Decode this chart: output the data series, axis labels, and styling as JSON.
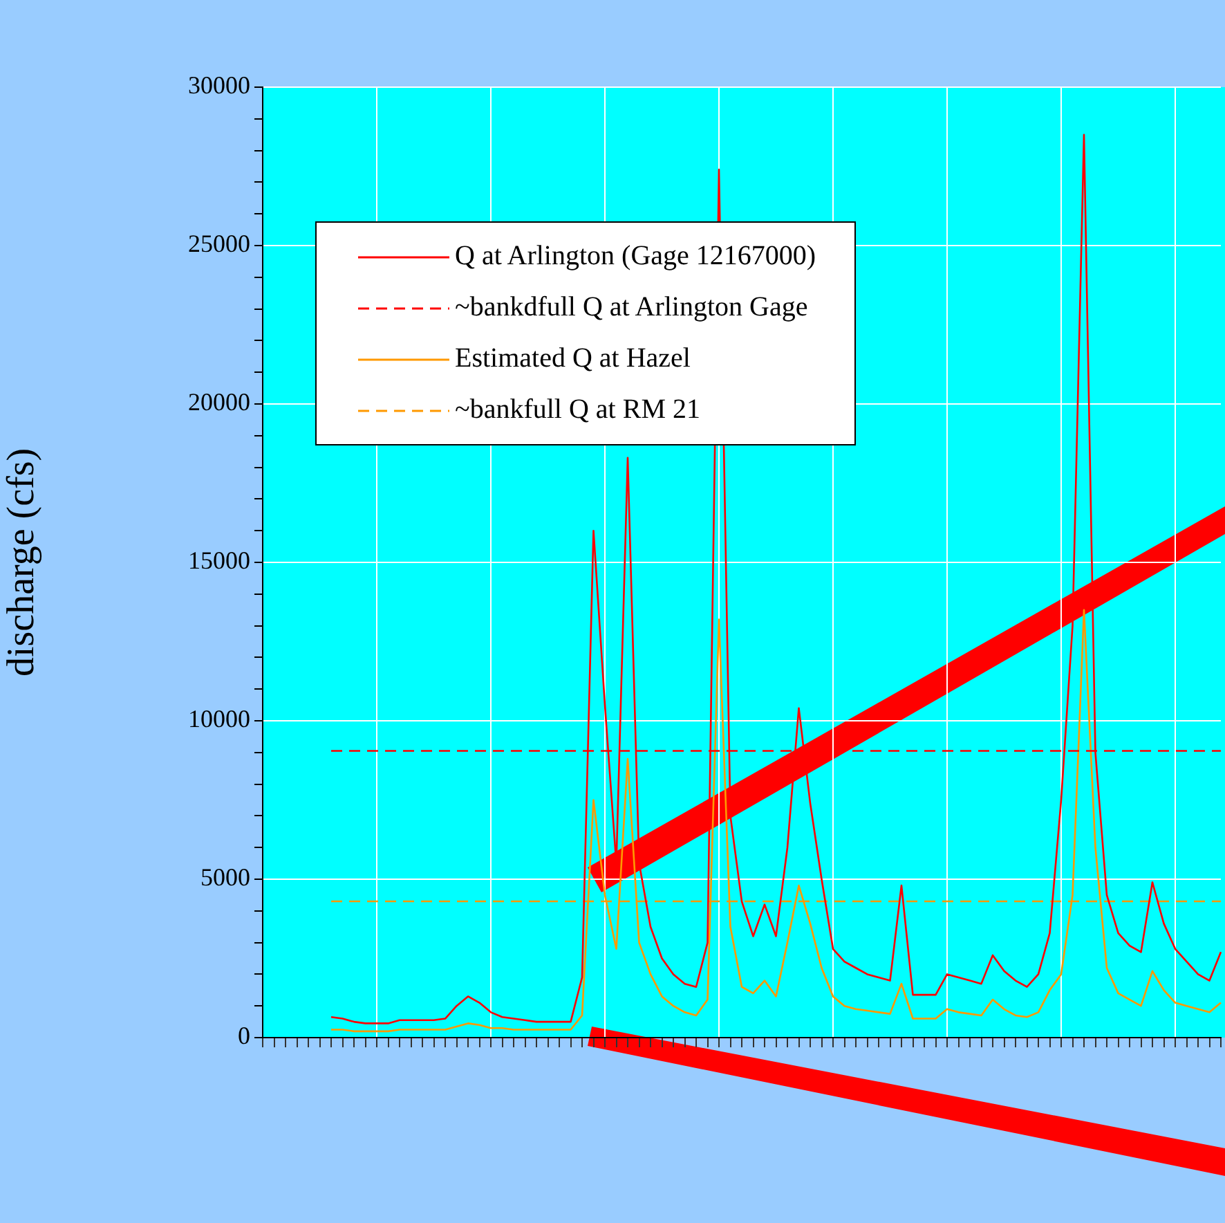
{
  "chart_data": {
    "type": "line",
    "ylabel": "discharge (cfs)",
    "categories": [
      null,
      null,
      null,
      null,
      null,
      null,
      null,
      null,
      null,
      null,
      null,
      null,
      null,
      null,
      null,
      null,
      null,
      null,
      null,
      null,
      null,
      null,
      null,
      null,
      null,
      null,
      null,
      null,
      null,
      null,
      null,
      null,
      null,
      null,
      null,
      null,
      null,
      null,
      null,
      null,
      null,
      null,
      null,
      null,
      null,
      null,
      null,
      null,
      null,
      null,
      null,
      null,
      null,
      null,
      null,
      null,
      null,
      null,
      null,
      null,
      null,
      null,
      null,
      null,
      null,
      null,
      null,
      null,
      null,
      null,
      null,
      null,
      null,
      null,
      null,
      null,
      null,
      null,
      null,
      null,
      null,
      null,
      null,
      null,
      null
    ],
    "series": [
      {
        "name": "Q at Arlington (Gage 12167000)",
        "color": "#ff0000",
        "line_style": "solid",
        "values": [
          null,
          null,
          null,
          null,
          null,
          null,
          650,
          600,
          500,
          450,
          450,
          450,
          550,
          550,
          550,
          550,
          600,
          1000,
          1300,
          1100,
          800,
          650,
          600,
          550,
          500,
          500,
          500,
          500,
          1900,
          16000,
          10500,
          5500,
          18300,
          5500,
          3500,
          2500,
          2000,
          1700,
          1600,
          3000,
          27400,
          7000,
          4300,
          3200,
          4200,
          3200,
          6000,
          10400,
          7400,
          5000,
          2800,
          2400,
          2200,
          2000,
          1900,
          1800,
          4800,
          1350,
          1350,
          1350,
          2000,
          1900,
          1800,
          1700,
          2600,
          2100,
          1800,
          1600,
          2000,
          3300,
          7500,
          13000,
          28500,
          9000,
          4500,
          3300,
          2900,
          2700,
          4900,
          3600,
          2800,
          2400,
          2000,
          1800,
          2700
        ]
      },
      {
        "name": "~bankdfull Q at Arlington Gage",
        "color": "#ff0000",
        "line_style": "dashed",
        "values": [
          null,
          null,
          null,
          null,
          null,
          null,
          9050,
          9050,
          9050,
          9050,
          9050,
          9050,
          9050,
          9050,
          9050,
          9050,
          9050,
          9050,
          9050,
          9050,
          9050,
          9050,
          9050,
          9050,
          9050,
          9050,
          9050,
          9050,
          9050,
          9050,
          9050,
          9050,
          9050,
          9050,
          9050,
          9050,
          9050,
          9050,
          9050,
          9050,
          9050,
          9050,
          9050,
          9050,
          9050,
          9050,
          9050,
          9050,
          9050,
          9050,
          9050,
          9050,
          9050,
          9050,
          9050,
          9050,
          9050,
          9050,
          9050,
          9050,
          9050,
          9050,
          9050,
          9050,
          9050,
          9050,
          9050,
          9050,
          9050,
          9050,
          9050,
          9050,
          9050,
          9050,
          9050,
          9050,
          9050,
          9050,
          9050,
          9050,
          9050,
          9050,
          9050,
          9050,
          9050
        ]
      },
      {
        "name": "Estimated Q at Hazel",
        "color": "#ff9900",
        "line_style": "solid",
        "values": [
          null,
          null,
          null,
          null,
          null,
          null,
          250,
          250,
          200,
          200,
          200,
          200,
          250,
          250,
          250,
          250,
          250,
          350,
          450,
          400,
          300,
          300,
          250,
          250,
          250,
          250,
          250,
          250,
          700,
          7500,
          4500,
          2800,
          8800,
          3000,
          2000,
          1300,
          1000,
          800,
          700,
          1200,
          13200,
          3500,
          1600,
          1400,
          1800,
          1300,
          3000,
          4800,
          3600,
          2200,
          1300,
          1000,
          900,
          850,
          800,
          750,
          1700,
          600,
          600,
          600,
          900,
          800,
          750,
          700,
          1200,
          900,
          700,
          650,
          800,
          1500,
          2000,
          4500,
          13500,
          6000,
          2200,
          1400,
          1200,
          1000,
          2100,
          1500,
          1100,
          1000,
          900,
          800,
          1100
        ]
      },
      {
        "name": "~bankfull Q at RM 21",
        "color": "#ff9900",
        "line_style": "dashed",
        "values": [
          null,
          null,
          null,
          null,
          null,
          null,
          4300,
          4300,
          4300,
          4300,
          4300,
          4300,
          4300,
          4300,
          4300,
          4300,
          4300,
          4300,
          4300,
          4300,
          4300,
          4300,
          4300,
          4300,
          4300,
          4300,
          4300,
          4300,
          4300,
          4300,
          4300,
          4300,
          4300,
          4300,
          4300,
          4300,
          4300,
          4300,
          4300,
          4300,
          4300,
          4300,
          4300,
          4300,
          4300,
          4300,
          4300,
          4300,
          4300,
          4300,
          4300,
          4300,
          4300,
          4300,
          4300,
          4300,
          4300,
          4300,
          4300,
          4300,
          4300,
          4300,
          4300,
          4300,
          4300,
          4300,
          4300,
          4300,
          4300,
          4300,
          4300,
          4300,
          4300,
          4300,
          4300,
          4300,
          4300,
          4300,
          4300,
          4300,
          4300,
          4300,
          4300,
          4300,
          4300
        ]
      }
    ],
    "ylim": [
      0,
      30000
    ],
    "yticks": [
      0,
      {
        "value": 1000,
        "label": null
      },
      {
        "value": 2000,
        "label": null
      },
      {
        "value": 3000,
        "label": null
      },
      {
        "value": 4000,
        "label": null
      },
      5000,
      {
        "value": 6000,
        "label": null
      },
      {
        "value": 7000,
        "label": null
      },
      {
        "value": 8000,
        "label": null
      },
      {
        "value": 9000,
        "label": null
      },
      10000,
      {
        "value": 11000,
        "label": null
      },
      {
        "value": 12000,
        "label": null
      },
      {
        "value": 13000,
        "label": null
      },
      {
        "value": 14000,
        "label": null
      },
      15000,
      {
        "value": 16000,
        "label": null
      },
      {
        "value": 17000,
        "label": null
      },
      {
        "value": 18000,
        "label": null
      },
      {
        "value": 19000,
        "label": null
      },
      20000,
      {
        "value": 21000,
        "label": null
      },
      {
        "value": 22000,
        "label": null
      },
      {
        "value": 23000,
        "label": null
      },
      {
        "value": 24000,
        "label": null
      },
      25000,
      {
        "value": 26000,
        "label": null
      },
      {
        "value": 27000,
        "label": null
      },
      {
        "value": 28000,
        "label": null
      },
      {
        "value": 29000,
        "label": null
      },
      30000
    ],
    "grid": true,
    "legend": "top left",
    "marker": "none"
  }
}
